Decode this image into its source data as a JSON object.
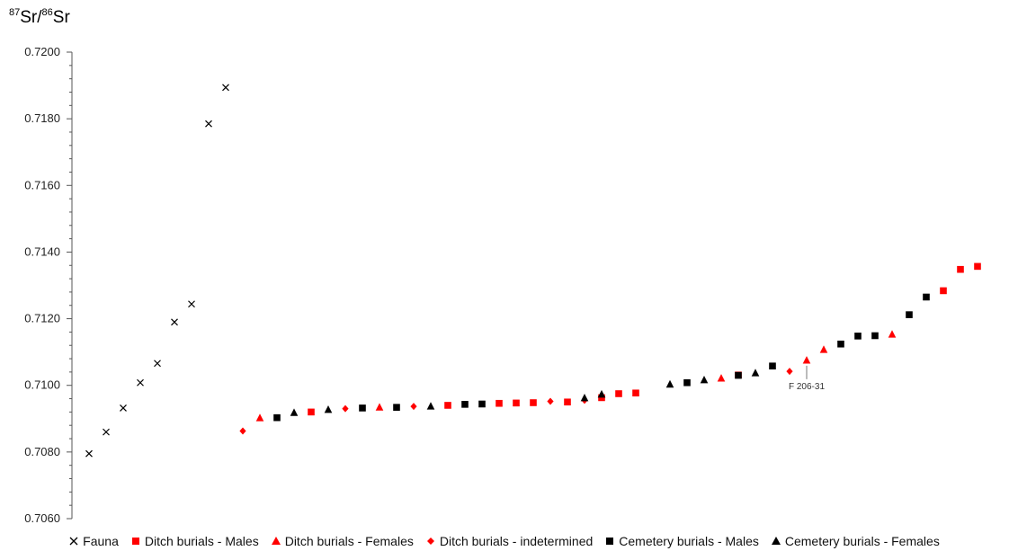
{
  "chart_data": {
    "type": "scatter",
    "ylabel": {
      "sup1": "87",
      "text1": "Sr/",
      "sup2": "86",
      "text2": "Sr"
    },
    "xlabel": "",
    "ylim": [
      0.706,
      0.72
    ],
    "yticks": [
      "0.7060",
      "0.7080",
      "0.7100",
      "0.7120",
      "0.7140",
      "0.7160",
      "0.7180",
      "0.7200"
    ],
    "x_count": 54,
    "series": [
      {
        "name": "Fauna",
        "marker": "x",
        "color": "#000000",
        "points": [
          [
            1,
            0.70795
          ],
          [
            2,
            0.7086
          ],
          [
            3,
            0.70932
          ],
          [
            4,
            0.71008
          ],
          [
            5,
            0.71066
          ],
          [
            6,
            0.7119
          ],
          [
            7,
            0.71244
          ],
          [
            8,
            0.71785
          ],
          [
            9,
            0.71894
          ]
        ]
      },
      {
        "name": "Ditch burials - Males",
        "marker": "square",
        "color": "#ff0000",
        "points": [
          [
            14,
            0.7092
          ],
          [
            22,
            0.7094
          ],
          [
            25,
            0.70946
          ],
          [
            26,
            0.70947
          ],
          [
            27,
            0.70948
          ],
          [
            29,
            0.7095
          ],
          [
            31,
            0.70963
          ],
          [
            32,
            0.70975
          ],
          [
            33,
            0.70977
          ],
          [
            39,
            0.71031
          ],
          [
            51,
            0.71284
          ],
          [
            52,
            0.71348
          ],
          [
            53,
            0.71357
          ]
        ]
      },
      {
        "name": "Ditch burials - Females",
        "marker": "triangle",
        "color": "#ff0000",
        "points": [
          [
            11,
            0.70902
          ],
          [
            18,
            0.70934
          ],
          [
            38,
            0.71021
          ],
          [
            43,
            0.71075
          ],
          [
            44,
            0.71107
          ],
          [
            48,
            0.71153
          ]
        ]
      },
      {
        "name": "Ditch burials - indetermined",
        "marker": "diamond",
        "color": "#ff0000",
        "points": [
          [
            10,
            0.70863
          ],
          [
            16,
            0.7093
          ],
          [
            20,
            0.70937
          ],
          [
            28,
            0.70952
          ],
          [
            30,
            0.70955
          ],
          [
            42,
            0.71042
          ]
        ]
      },
      {
        "name": "Cemetery burials - Males",
        "marker": "square",
        "color": "#000000",
        "points": [
          [
            12,
            0.70903
          ],
          [
            17,
            0.70932
          ],
          [
            19,
            0.70934
          ],
          [
            23,
            0.70943
          ],
          [
            24,
            0.70944
          ],
          [
            36,
            0.71008
          ],
          [
            39,
            0.7103
          ],
          [
            41,
            0.71058
          ],
          [
            45,
            0.71124
          ],
          [
            46,
            0.71148
          ],
          [
            47,
            0.71149
          ],
          [
            49,
            0.71212
          ],
          [
            50,
            0.71265
          ]
        ]
      },
      {
        "name": "Cemetery burials - Females",
        "marker": "triangle",
        "color": "#000000",
        "points": [
          [
            13,
            0.70918
          ],
          [
            15,
            0.70927
          ],
          [
            21,
            0.70937
          ],
          [
            30,
            0.70962
          ],
          [
            31,
            0.70973
          ],
          [
            35,
            0.71003
          ],
          [
            37,
            0.71016
          ],
          [
            40,
            0.71037
          ]
        ]
      }
    ],
    "annotations": [
      {
        "text": "F 206-31",
        "x": 43,
        "y": 0.71075
      }
    ],
    "grid": false,
    "legend_position": "bottom"
  }
}
